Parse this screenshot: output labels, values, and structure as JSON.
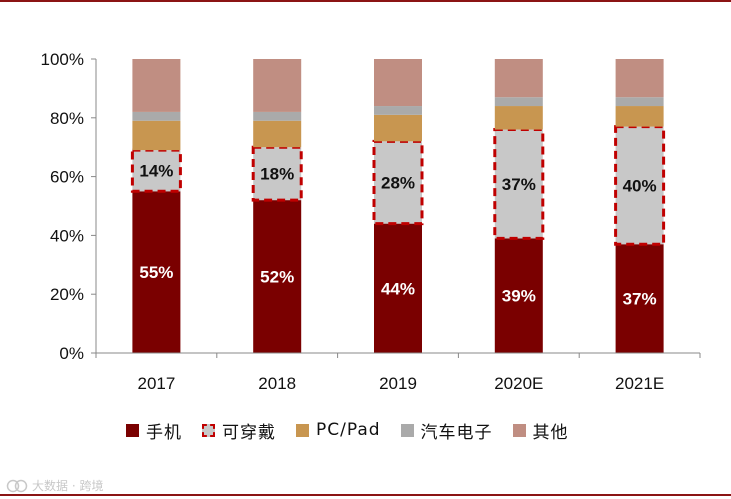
{
  "chart_data": {
    "type": "bar",
    "stacked": true,
    "percent": true,
    "categories": [
      "2017",
      "2018",
      "2019",
      "2020E",
      "2021E"
    ],
    "yticks": [
      "0%",
      "20%",
      "40%",
      "60%",
      "80%",
      "100%"
    ],
    "ylim": [
      0,
      100
    ],
    "series": [
      {
        "name": "手机",
        "color": "#7a0000",
        "values": [
          55,
          52,
          44,
          39,
          37
        ],
        "labels": [
          "55%",
          "52%",
          "44%",
          "39%",
          "37%"
        ],
        "label_color": "#ffffff"
      },
      {
        "name": "可穿戴",
        "color": "#c8c8c8",
        "border": "#c00000",
        "values": [
          14,
          18,
          28,
          37,
          40
        ],
        "labels": [
          "14%",
          "18%",
          "28%",
          "37%",
          "40%"
        ],
        "label_color": "#111111"
      },
      {
        "name": "PC/Pad",
        "color": "#c89650",
        "values": [
          10,
          9,
          9,
          8,
          7
        ]
      },
      {
        "name": "汽车电子",
        "color": "#aaaaaa",
        "values": [
          3,
          3,
          3,
          3,
          3
        ]
      },
      {
        "name": "其他",
        "color": "#c08e82",
        "values": [
          18,
          18,
          16,
          13,
          13
        ]
      }
    ],
    "legend_position": "bottom",
    "title": "",
    "xlabel": "",
    "ylabel": ""
  },
  "watermark": {
    "text": "大数据 · 跨境"
  }
}
